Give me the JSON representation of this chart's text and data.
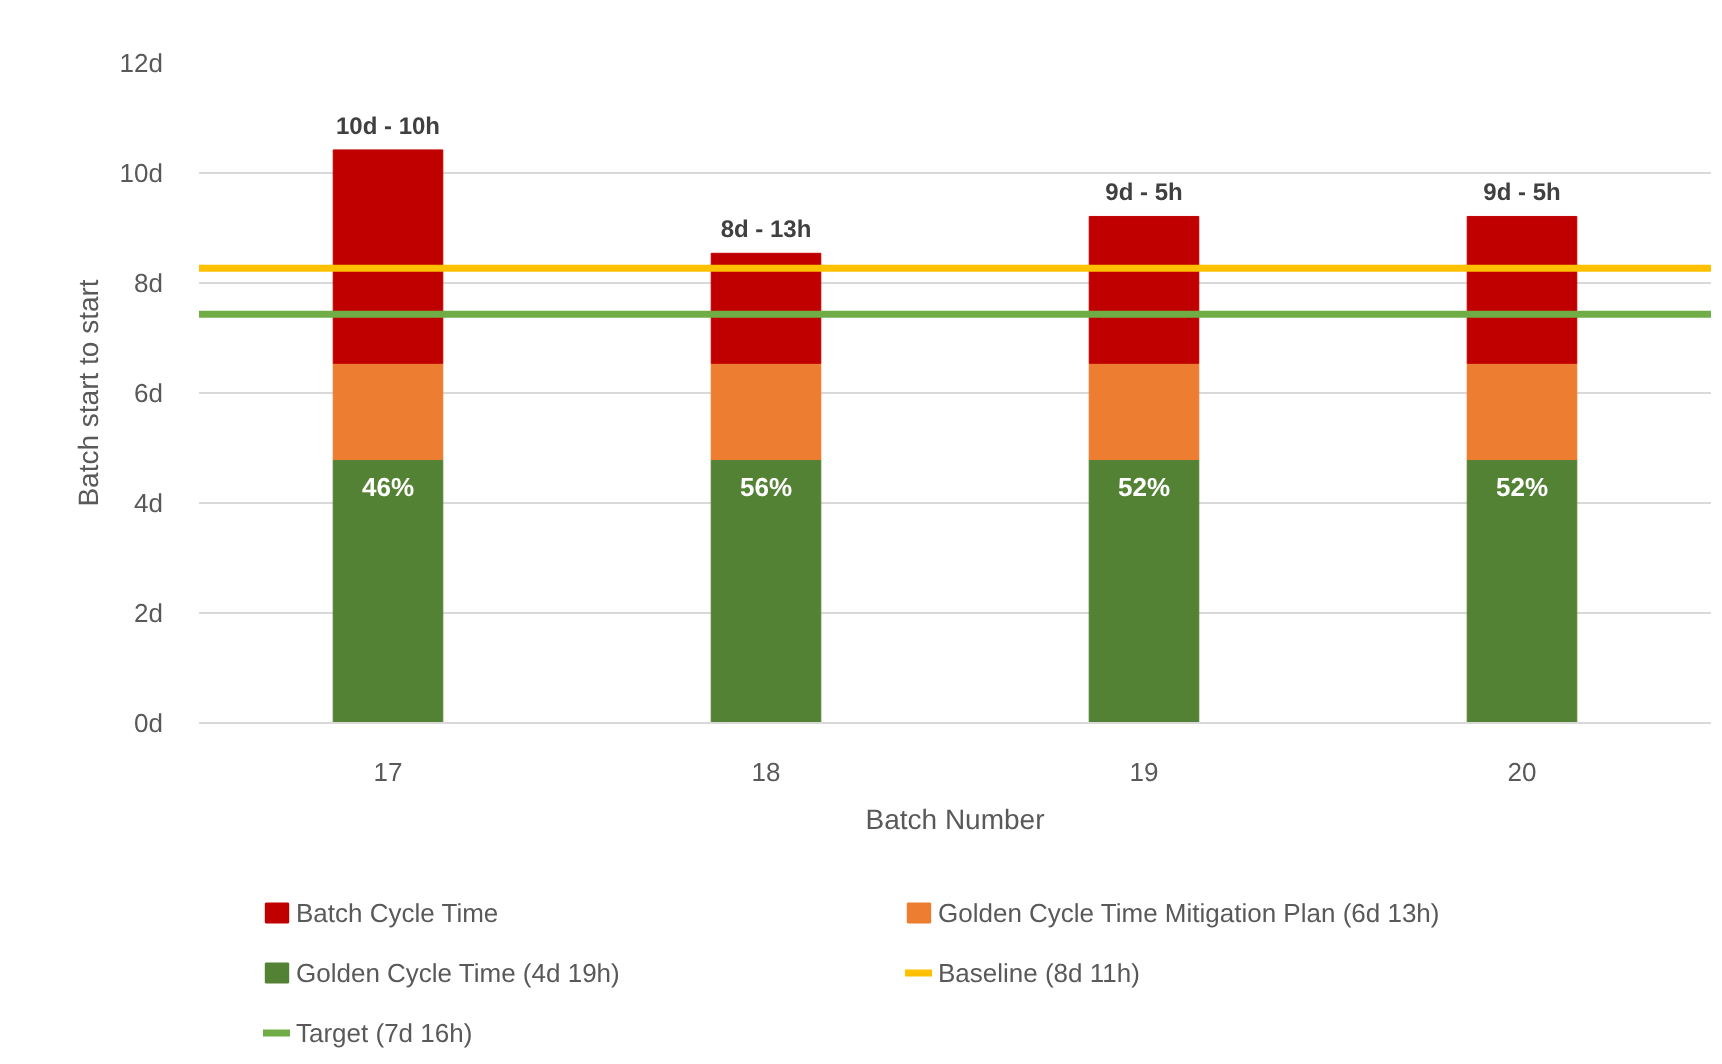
{
  "chart_data": {
    "type": "bar",
    "stacked": true,
    "categories": [
      "17",
      "18",
      "19",
      "20"
    ],
    "xlabel": "Batch Number",
    "ylabel": "Batch start to start",
    "series": [
      {
        "name": "Golden Cycle Time (4d 19h)",
        "color": "#548235",
        "values": [
          4.79,
          4.79,
          4.79,
          4.79
        ]
      },
      {
        "name": "Golden Cycle Time Mitigation Plan (6d 13h)",
        "color": "#ed7d31",
        "values": [
          1.75,
          1.75,
          1.75,
          1.75
        ]
      },
      {
        "name": "Batch Cycle Time",
        "color": "#c00000",
        "values": [
          3.88,
          2.0,
          2.67,
          2.67
        ]
      }
    ],
    "totals": [
      "10d - 10h",
      "8d - 13h",
      "9d - 5h",
      "9d - 5h"
    ],
    "annotations": [
      {
        "text": "46%",
        "x": "17",
        "y": 4.79
      },
      {
        "text": "56%",
        "x": "18",
        "y": 4.79
      },
      {
        "text": "52%",
        "x": "19",
        "y": 4.79
      },
      {
        "text": "52%",
        "x": "20",
        "y": 4.79
      }
    ],
    "ref_lines": [
      {
        "axis": "y",
        "value": 8.27,
        "label": "Baseline (8d 11h)",
        "color": "#ffc000"
      },
      {
        "axis": "y",
        "value": 7.43,
        "label": "Target (7d 16h)",
        "color": "#70ad47"
      }
    ],
    "ylim": [
      0,
      12
    ],
    "yticks": [
      {
        "value": 0,
        "label": "0d"
      },
      {
        "value": 2,
        "label": "2d"
      },
      {
        "value": 4,
        "label": "4d"
      },
      {
        "value": 6,
        "label": "6d"
      },
      {
        "value": 8,
        "label": "8d"
      },
      {
        "value": 10,
        "label": "10d"
      },
      {
        "value": 12,
        "label": "12d"
      }
    ],
    "grid": "y",
    "legend": "bottom"
  }
}
